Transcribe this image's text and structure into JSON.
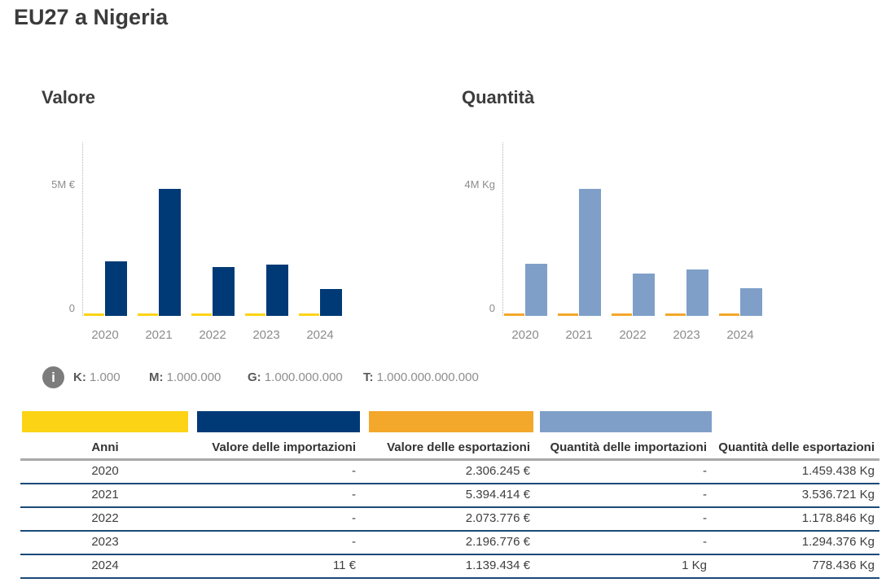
{
  "page": {
    "title": "EU27 a Nigeria"
  },
  "chart_data": [
    {
      "type": "bar",
      "title": "Valore",
      "unit": "€",
      "categories": [
        "2020",
        "2021",
        "2022",
        "2023",
        "2024"
      ],
      "series": [
        {
          "name": "Valore delle importazioni",
          "color": "#FDD316",
          "values": [
            null,
            null,
            null,
            null,
            11
          ]
        },
        {
          "name": "Valore delle esportazioni",
          "color": "#003A76",
          "values": [
            2306245,
            5394414,
            2073776,
            2196776,
            1139434
          ]
        }
      ],
      "y_axis": {
        "top_label": "5M €",
        "zero_label": "0",
        "top_value": 5000000
      },
      "grid": false,
      "legend_position": "none"
    },
    {
      "type": "bar",
      "title": "Quantità",
      "unit": "Kg",
      "categories": [
        "2020",
        "2021",
        "2022",
        "2023",
        "2024"
      ],
      "series": [
        {
          "name": "Quantità delle importazioni",
          "color": "#F3A72B",
          "values": [
            null,
            null,
            null,
            null,
            1
          ]
        },
        {
          "name": "Quantità delle esportazioni",
          "color": "#7F9FC8",
          "values": [
            1459438,
            3536721,
            1178846,
            1294376,
            778436
          ]
        }
      ],
      "y_axis": {
        "top_label": "4M Kg",
        "zero_label": "0",
        "top_value": 4000000
      },
      "grid": false,
      "legend_position": "none"
    }
  ],
  "unit_legend": {
    "icon": "info-icon",
    "items": [
      {
        "label": "K:",
        "value": "1.000"
      },
      {
        "label": "M:",
        "value": "1.000.000"
      },
      {
        "label": "G:",
        "value": "1.000.000.000"
      },
      {
        "label": "T:",
        "value": "1.000.000.000.000"
      }
    ]
  },
  "table": {
    "columns": [
      "Anni",
      "Valore delle importazioni",
      "Valore delle esportazioni",
      "Quantità delle importazioni",
      "Quantità delle esportazioni"
    ],
    "swatch_colors": [
      "#FDD316",
      "#003A76",
      "#F3A72B",
      "#7F9FC8"
    ],
    "rows": [
      [
        "2020",
        "-",
        "2.306.245 €",
        "-",
        "1.459.438 Kg"
      ],
      [
        "2021",
        "-",
        "5.394.414 €",
        "-",
        "3.536.721 Kg"
      ],
      [
        "2022",
        "-",
        "2.073.776 €",
        "-",
        "1.178.846 Kg"
      ],
      [
        "2023",
        "-",
        "2.196.776 €",
        "-",
        "1.294.376 Kg"
      ],
      [
        "2024",
        "11 €",
        "1.139.434 €",
        "1 Kg",
        "778.436 Kg"
      ]
    ]
  }
}
